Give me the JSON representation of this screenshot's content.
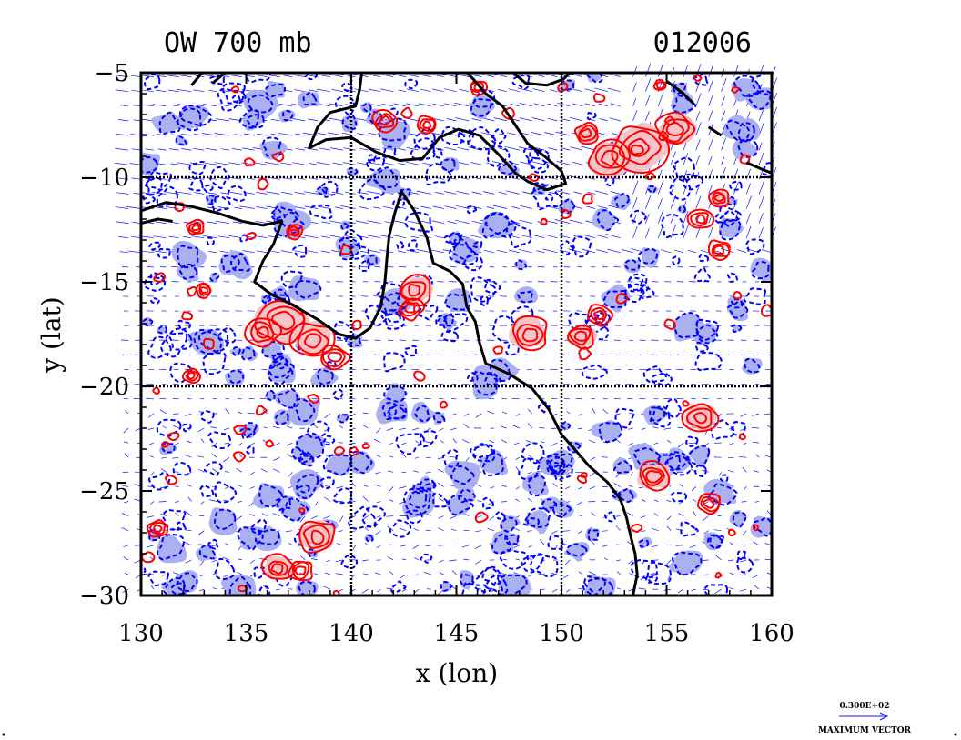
{
  "chart_data": {
    "type": "contour",
    "title_left": "OW 700 mb",
    "title_right": "012006",
    "xlabel": "x (lon)",
    "ylabel": "y (lat)",
    "xlim": [
      130,
      160
    ],
    "ylim": [
      -30,
      -5
    ],
    "x_ticks": [
      130,
      135,
      140,
      145,
      150,
      155,
      160
    ],
    "y_ticks": [
      -5,
      -10,
      -15,
      -20,
      -25,
      -30
    ],
    "x_tick_labels": [
      "130",
      "135",
      "140",
      "145",
      "150",
      "155",
      "160"
    ],
    "y_tick_labels": [
      "−5",
      "−10",
      "−15",
      "−20",
      "−25",
      "−30"
    ],
    "gridlines": {
      "lon": [
        140,
        150
      ],
      "lat": [
        -10,
        -20
      ]
    },
    "legend": {
      "vector_value": "0.300E+02",
      "vector_label": "MAXIMUM VECTOR",
      "placement": "bottom-right"
    },
    "colors": {
      "positive_contour": "#ff0000",
      "positive_fill": "#f4c4c8",
      "negative_contour": "#0000ff",
      "negative_fill": "#aab0f0",
      "vectors": "#1010ff",
      "coastline": "#000000",
      "grid": "#000000"
    },
    "coastline": [
      [
        [
          130.0,
          -11.6
        ],
        [
          131.2,
          -11.2
        ],
        [
          132.4,
          -11.4
        ],
        [
          133.6,
          -11.7
        ],
        [
          134.8,
          -12.1
        ],
        [
          135.8,
          -12.3
        ],
        [
          136.7,
          -12.1
        ],
        [
          136.3,
          -13.2
        ],
        [
          135.8,
          -14.0
        ],
        [
          135.4,
          -15.0
        ],
        [
          136.2,
          -15.6
        ],
        [
          137.2,
          -16.1
        ],
        [
          138.4,
          -16.8
        ],
        [
          139.4,
          -17.5
        ],
        [
          140.2,
          -17.7
        ],
        [
          140.9,
          -17.2
        ],
        [
          141.4,
          -16.2
        ],
        [
          141.6,
          -15.0
        ],
        [
          141.7,
          -13.8
        ],
        [
          141.8,
          -12.8
        ],
        [
          142.1,
          -11.6
        ],
        [
          142.4,
          -10.7
        ],
        [
          143.0,
          -11.6
        ],
        [
          143.6,
          -12.9
        ],
        [
          143.9,
          -14.1
        ],
        [
          144.7,
          -14.5
        ],
        [
          145.3,
          -15.1
        ],
        [
          145.5,
          -16.2
        ],
        [
          145.9,
          -16.9
        ],
        [
          146.1,
          -17.9
        ],
        [
          146.4,
          -18.9
        ],
        [
          147.5,
          -19.4
        ],
        [
          148.6,
          -20.1
        ],
        [
          149.4,
          -21.1
        ],
        [
          150.0,
          -22.3
        ],
        [
          150.7,
          -23.1
        ],
        [
          151.3,
          -23.8
        ],
        [
          152.2,
          -24.6
        ],
        [
          152.8,
          -25.4
        ],
        [
          153.1,
          -26.3
        ],
        [
          153.3,
          -27.2
        ],
        [
          153.5,
          -28.0
        ],
        [
          153.6,
          -29.0
        ],
        [
          153.4,
          -30.0
        ]
      ],
      [
        [
          132.4,
          -5.6
        ],
        [
          132.9,
          -5.0
        ]
      ],
      [
        [
          133.4,
          -5.5
        ],
        [
          134.0,
          -5.0
        ]
      ],
      [
        [
          140.5,
          -5.0
        ],
        [
          140.4,
          -5.8
        ],
        [
          140.2,
          -6.6
        ],
        [
          139.0,
          -6.9
        ],
        [
          138.4,
          -7.6
        ],
        [
          138.0,
          -8.6
        ],
        [
          138.8,
          -8.2
        ],
        [
          140.0,
          -8.1
        ],
        [
          141.2,
          -8.8
        ],
        [
          142.3,
          -9.2
        ],
        [
          143.4,
          -9.1
        ],
        [
          144.2,
          -8.1
        ],
        [
          145.1,
          -7.7
        ],
        [
          146.1,
          -8.0
        ],
        [
          147.0,
          -8.9
        ],
        [
          147.8,
          -9.8
        ],
        [
          148.4,
          -10.2
        ],
        [
          149.3,
          -10.6
        ],
        [
          150.2,
          -10.3
        ],
        [
          150.0,
          -9.7
        ],
        [
          149.2,
          -9.0
        ],
        [
          148.4,
          -8.4
        ],
        [
          147.8,
          -7.5
        ],
        [
          147.2,
          -6.6
        ],
        [
          146.4,
          -6.0
        ],
        [
          145.8,
          -5.3
        ],
        [
          145.5,
          -5.0
        ]
      ],
      [
        [
          147.7,
          -5.0
        ],
        [
          148.3,
          -5.5
        ],
        [
          149.3,
          -5.6
        ],
        [
          150.1,
          -5.3
        ],
        [
          150.4,
          -5.0
        ]
      ],
      [
        [
          155.0,
          -5.4
        ],
        [
          155.8,
          -6.0
        ],
        [
          156.3,
          -6.5
        ]
      ],
      [
        [
          157.0,
          -7.6
        ],
        [
          157.6,
          -8.0
        ]
      ],
      [
        [
          158.8,
          -9.3
        ],
        [
          159.5,
          -9.6
        ],
        [
          160.0,
          -9.8
        ]
      ],
      [
        [
          130.0,
          -12.2
        ],
        [
          130.8,
          -12.0
        ],
        [
          131.5,
          -12.1
        ]
      ]
    ],
    "positive_features": [
      {
        "lon": 136.8,
        "lat": -16.8,
        "r": 1.3,
        "fill": true
      },
      {
        "lon": 135.8,
        "lat": -17.4,
        "r": 0.8,
        "fill": true
      },
      {
        "lon": 138.2,
        "lat": -17.8,
        "r": 1.0,
        "fill": true
      },
      {
        "lon": 139.2,
        "lat": -18.6,
        "r": 0.7,
        "fill": false
      },
      {
        "lon": 143.0,
        "lat": -15.4,
        "r": 0.8,
        "fill": true
      },
      {
        "lon": 142.8,
        "lat": -16.3,
        "r": 0.6,
        "fill": false
      },
      {
        "lon": 148.5,
        "lat": -17.5,
        "r": 0.9,
        "fill": true
      },
      {
        "lon": 150.9,
        "lat": -17.6,
        "r": 0.7,
        "fill": true
      },
      {
        "lon": 151.8,
        "lat": -16.6,
        "r": 0.6,
        "fill": false
      },
      {
        "lon": 153.7,
        "lat": -8.6,
        "r": 1.3,
        "fill": true
      },
      {
        "lon": 152.3,
        "lat": -9.1,
        "r": 1.0,
        "fill": true
      },
      {
        "lon": 155.4,
        "lat": -7.7,
        "r": 0.9,
        "fill": true
      },
      {
        "lon": 151.2,
        "lat": -7.9,
        "r": 0.6,
        "fill": true
      },
      {
        "lon": 157.5,
        "lat": -11.0,
        "r": 0.5,
        "fill": true
      },
      {
        "lon": 156.6,
        "lat": -12.0,
        "r": 0.6,
        "fill": false
      },
      {
        "lon": 157.5,
        "lat": -13.5,
        "r": 0.6,
        "fill": false
      },
      {
        "lon": 156.6,
        "lat": -21.5,
        "r": 0.8,
        "fill": true
      },
      {
        "lon": 154.4,
        "lat": -24.3,
        "r": 0.8,
        "fill": true
      },
      {
        "lon": 157.0,
        "lat": -25.6,
        "r": 0.6,
        "fill": false
      },
      {
        "lon": 138.4,
        "lat": -27.2,
        "r": 0.9,
        "fill": true
      },
      {
        "lon": 136.5,
        "lat": -28.7,
        "r": 0.7,
        "fill": true
      },
      {
        "lon": 137.6,
        "lat": -28.8,
        "r": 0.6,
        "fill": false
      },
      {
        "lon": 130.8,
        "lat": -26.8,
        "r": 0.5,
        "fill": false
      },
      {
        "lon": 132.6,
        "lat": -12.4,
        "r": 0.4,
        "fill": false
      },
      {
        "lon": 137.3,
        "lat": -12.6,
        "r": 0.4,
        "fill": false
      },
      {
        "lon": 132.4,
        "lat": -19.5,
        "r": 0.4,
        "fill": false
      },
      {
        "lon": 133.0,
        "lat": -15.4,
        "r": 0.4,
        "fill": false
      },
      {
        "lon": 141.6,
        "lat": -7.3,
        "r": 0.6,
        "fill": false
      },
      {
        "lon": 143.6,
        "lat": -7.5,
        "r": 0.5,
        "fill": false
      },
      {
        "lon": 146.0,
        "lat": -5.7,
        "r": 0.4,
        "fill": false
      },
      {
        "lon": 154.7,
        "lat": -5.6,
        "r": 0.3,
        "fill": false
      }
    ]
  }
}
